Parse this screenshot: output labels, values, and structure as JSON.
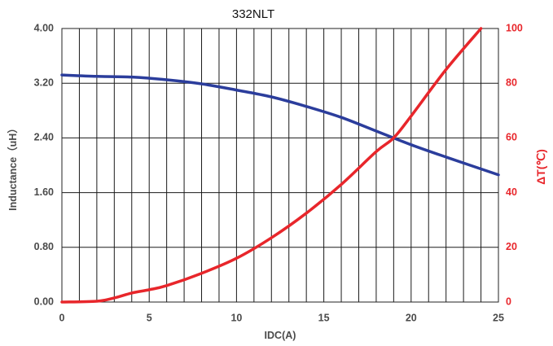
{
  "chart_data": {
    "type": "line",
    "title": "332NLT",
    "xlabel": "IDC(A)",
    "ylabel_left": "Inductance（uH）",
    "ylabel_right": "ΔT(℃)",
    "xlim": [
      0,
      25
    ],
    "ylim_left": [
      0,
      4
    ],
    "ylim_right": [
      0,
      100
    ],
    "x_ticks": [
      "0",
      "5",
      "10",
      "15",
      "20",
      "25"
    ],
    "y_left_ticks": [
      "0.00",
      "0.80",
      "1.60",
      "2.40",
      "3.20",
      "4.00"
    ],
    "y_right_ticks": [
      "0",
      "20",
      "40",
      "60",
      "80",
      "100"
    ],
    "grid": true,
    "series": [
      {
        "axis": "left",
        "color": "#2b3d9c",
        "points": [
          [
            0,
            3.32
          ],
          [
            2,
            3.3
          ],
          [
            4,
            3.29
          ],
          [
            6,
            3.25
          ],
          [
            8,
            3.19
          ],
          [
            10,
            3.1
          ],
          [
            12,
            3.0
          ],
          [
            14,
            2.86
          ],
          [
            16,
            2.7
          ],
          [
            18,
            2.5
          ],
          [
            20,
            2.3
          ],
          [
            22,
            2.12
          ],
          [
            25,
            1.86
          ]
        ]
      },
      {
        "axis": "right",
        "color": "#e8262b",
        "points": [
          [
            0,
            0
          ],
          [
            2,
            0.3
          ],
          [
            3,
            1.5
          ],
          [
            4,
            3.3
          ],
          [
            5,
            4.5
          ],
          [
            6,
            6
          ],
          [
            8,
            10.5
          ],
          [
            10,
            16
          ],
          [
            12,
            23.5
          ],
          [
            14,
            32.5
          ],
          [
            16,
            43
          ],
          [
            18,
            55
          ],
          [
            19,
            60
          ],
          [
            20,
            68
          ],
          [
            22,
            85
          ],
          [
            24,
            100
          ]
        ]
      }
    ]
  }
}
